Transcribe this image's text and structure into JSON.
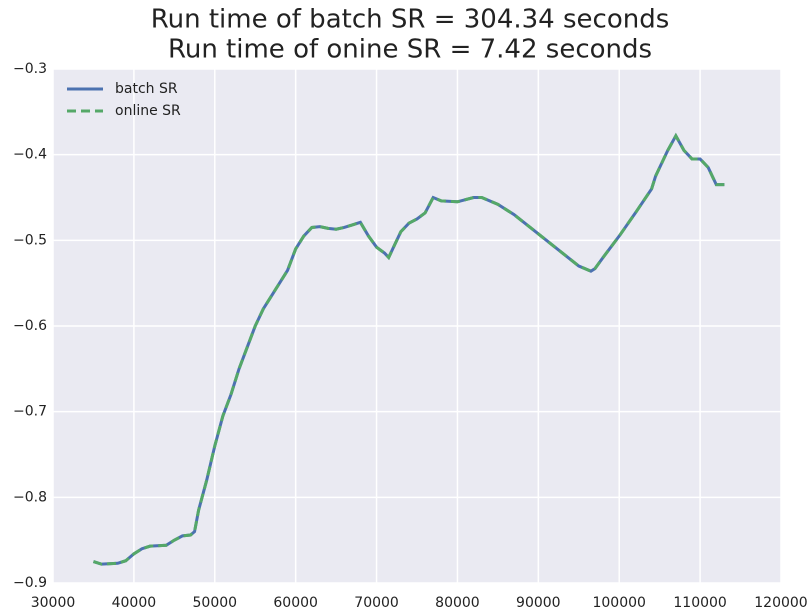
{
  "chart_data": {
    "type": "line",
    "title": [
      "Run time of batch SR = 304.34 seconds",
      "Run time of onine SR = 7.42 seconds"
    ],
    "x": [
      35000,
      36000,
      38000,
      39000,
      40000,
      41000,
      42000,
      44000,
      45000,
      46000,
      47000,
      47500,
      48000,
      49000,
      50000,
      51000,
      52000,
      53000,
      54000,
      55000,
      56000,
      57000,
      58000,
      59000,
      60000,
      61000,
      62000,
      63000,
      64000,
      65000,
      66000,
      67000,
      68000,
      69000,
      70000,
      71000,
      71500,
      72000,
      73000,
      74000,
      75000,
      76000,
      77000,
      78000,
      80000,
      82000,
      83000,
      85000,
      87000,
      89000,
      91000,
      93000,
      95000,
      96500,
      97000,
      98000,
      100000,
      102000,
      104000,
      104500,
      105000,
      106000,
      107000,
      108000,
      109000,
      110000,
      111000,
      112000,
      113000
    ],
    "series": [
      {
        "name": "batch SR",
        "color": "#4c72b0",
        "dashed": false,
        "values": [
          -0.875,
          -0.878,
          -0.877,
          -0.874,
          -0.866,
          -0.86,
          -0.857,
          -0.856,
          -0.85,
          -0.845,
          -0.844,
          -0.84,
          -0.815,
          -0.78,
          -0.74,
          -0.705,
          -0.68,
          -0.65,
          -0.625,
          -0.6,
          -0.58,
          -0.565,
          -0.55,
          -0.535,
          -0.51,
          -0.495,
          -0.485,
          -0.484,
          -0.486,
          -0.487,
          -0.485,
          -0.482,
          -0.479,
          -0.495,
          -0.508,
          -0.515,
          -0.52,
          -0.51,
          -0.49,
          -0.48,
          -0.475,
          -0.468,
          -0.45,
          -0.454,
          -0.455,
          -0.45,
          -0.45,
          -0.458,
          -0.47,
          -0.485,
          -0.5,
          -0.515,
          -0.53,
          -0.536,
          -0.533,
          -0.52,
          -0.495,
          -0.468,
          -0.44,
          -0.425,
          -0.415,
          -0.395,
          -0.378,
          -0.395,
          -0.405,
          -0.405,
          -0.415,
          -0.435,
          -0.435
        ]
      },
      {
        "name": "online SR",
        "color": "#55a868",
        "dashed": true,
        "values": [
          -0.875,
          -0.878,
          -0.877,
          -0.874,
          -0.866,
          -0.86,
          -0.857,
          -0.856,
          -0.85,
          -0.845,
          -0.844,
          -0.84,
          -0.815,
          -0.78,
          -0.74,
          -0.705,
          -0.68,
          -0.65,
          -0.625,
          -0.6,
          -0.58,
          -0.565,
          -0.55,
          -0.535,
          -0.51,
          -0.495,
          -0.485,
          -0.484,
          -0.486,
          -0.487,
          -0.485,
          -0.482,
          -0.479,
          -0.495,
          -0.508,
          -0.515,
          -0.52,
          -0.51,
          -0.49,
          -0.48,
          -0.475,
          -0.468,
          -0.45,
          -0.454,
          -0.455,
          -0.45,
          -0.45,
          -0.458,
          -0.47,
          -0.485,
          -0.5,
          -0.515,
          -0.53,
          -0.536,
          -0.533,
          -0.52,
          -0.495,
          -0.468,
          -0.44,
          -0.425,
          -0.415,
          -0.395,
          -0.378,
          -0.395,
          -0.405,
          -0.405,
          -0.415,
          -0.435,
          -0.435
        ]
      }
    ],
    "xlim": [
      30000,
      120000
    ],
    "xticks": [
      30000,
      40000,
      50000,
      60000,
      70000,
      80000,
      90000,
      100000,
      110000,
      120000
    ],
    "ylim": [
      -0.9,
      -0.3
    ],
    "yticks": [
      {
        "value": -0.9,
        "label": "−0.9"
      },
      {
        "value": -0.8,
        "label": "−0.8"
      },
      {
        "value": -0.7,
        "label": "−0.7"
      },
      {
        "value": -0.6,
        "label": "−0.6"
      },
      {
        "value": -0.5,
        "label": "−0.5"
      },
      {
        "value": -0.4,
        "label": "−0.4"
      },
      {
        "value": -0.3,
        "label": "−0.3"
      }
    ],
    "grid": true,
    "legend": "upper left",
    "background": "#eaeaf2"
  }
}
